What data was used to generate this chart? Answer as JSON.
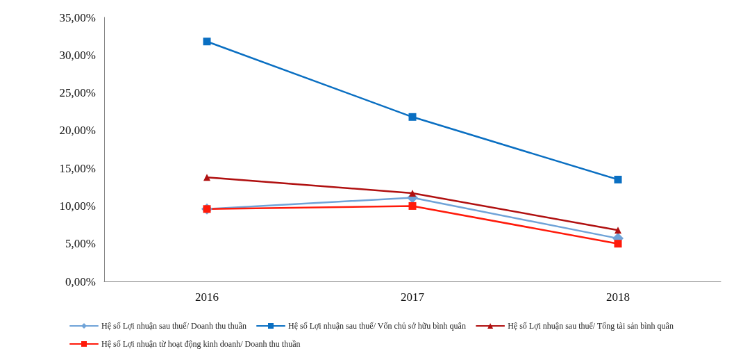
{
  "chart_data": {
    "type": "line",
    "categories": [
      "2016",
      "2017",
      "2018"
    ],
    "series": [
      {
        "name": "Hệ số Lợi nhuận sau thuế/ Doanh thu thuần",
        "color": "#6fa3d8",
        "marker": "diamond",
        "values": [
          9.6,
          11.1,
          5.7
        ]
      },
      {
        "name": "Hệ số Lợi nhuận sau thuế/ Vốn chủ sở hữu bình quân",
        "color": "#0a6fc2",
        "marker": "square",
        "values": [
          31.8,
          21.8,
          13.5
        ]
      },
      {
        "name": "Hệ số Lợi nhuận sau thuế/ Tổng tài sản bình quân",
        "color": "#b01010",
        "marker": "triangle",
        "values": [
          13.8,
          11.7,
          6.8
        ]
      },
      {
        "name": "Hệ số Lợi nhuận từ hoạt động kinh doanh/ Doanh thu thuần",
        "color": "#ff1a0a",
        "marker": "square",
        "values": [
          9.6,
          10.0,
          5.0
        ]
      }
    ],
    "ylim": [
      0,
      35
    ],
    "yticks": [
      {
        "value": 0,
        "label": "0,00%"
      },
      {
        "value": 5,
        "label": "5,00%"
      },
      {
        "value": 10,
        "label": "10,00%"
      },
      {
        "value": 15,
        "label": "15,00%"
      },
      {
        "value": 20,
        "label": "20,00%"
      },
      {
        "value": 25,
        "label": "25,00%"
      },
      {
        "value": 30,
        "label": "30,00%"
      },
      {
        "value": 35,
        "label": "35,00%"
      }
    ],
    "grid": false,
    "legend": "bottom",
    "line_style": "solid"
  }
}
